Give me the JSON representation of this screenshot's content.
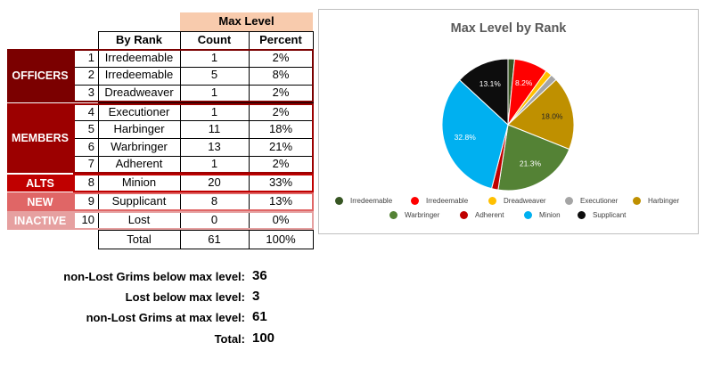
{
  "table": {
    "max_level_header": "Max Level",
    "col_headers": {
      "by_rank": "By Rank",
      "count": "Count",
      "percent": "Percent"
    },
    "groups": [
      {
        "label": "OFFICERS",
        "color": "#7b0000"
      },
      {
        "label": "MEMBERS",
        "color": "#9c0000"
      },
      {
        "label": "ALTS",
        "color": "#c00000"
      },
      {
        "label": "NEW",
        "color": "#e06666"
      },
      {
        "label": "INACTIVE",
        "color": "#e6a0a0"
      }
    ],
    "rows": [
      {
        "num": "1",
        "rank": "Irredeemable",
        "count": "1",
        "percent": "2%"
      },
      {
        "num": "2",
        "rank": "Irredeemable",
        "count": "5",
        "percent": "8%"
      },
      {
        "num": "3",
        "rank": "Dreadweaver",
        "count": "1",
        "percent": "2%"
      },
      {
        "num": "4",
        "rank": "Executioner",
        "count": "1",
        "percent": "2%"
      },
      {
        "num": "5",
        "rank": "Harbinger",
        "count": "11",
        "percent": "18%"
      },
      {
        "num": "6",
        "rank": "Warbringer",
        "count": "13",
        "percent": "21%"
      },
      {
        "num": "7",
        "rank": "Adherent",
        "count": "1",
        "percent": "2%"
      },
      {
        "num": "8",
        "rank": "Minion",
        "count": "20",
        "percent": "33%"
      },
      {
        "num": "9",
        "rank": "Supplicant",
        "count": "8",
        "percent": "13%"
      },
      {
        "num": "10",
        "rank": "Lost",
        "count": "0",
        "percent": "0%"
      }
    ],
    "total": {
      "label": "Total",
      "count": "61",
      "percent": "100%"
    }
  },
  "summary": [
    {
      "label": "non-Lost Grims below max level:",
      "value": "36"
    },
    {
      "label": "Lost below max level:",
      "value": "3"
    },
    {
      "label": "non-Lost Grims at max level:",
      "value": "61"
    },
    {
      "label": "Total:",
      "value": "100"
    }
  ],
  "chart_data": {
    "type": "pie",
    "title": "Max Level by Rank",
    "legend_position": "bottom",
    "slices": [
      {
        "label": "Irredeemable",
        "value": 1.6,
        "color": "#375623",
        "data_label": ""
      },
      {
        "label": "Irredeemable",
        "value": 8.2,
        "color": "#ff0000",
        "data_label": "8.2%"
      },
      {
        "label": "Dreadweaver",
        "value": 1.6,
        "color": "#ffc000",
        "data_label": ""
      },
      {
        "label": "Executioner",
        "value": 1.6,
        "color": "#a5a5a5",
        "data_label": ""
      },
      {
        "label": "Harbinger",
        "value": 18.0,
        "color": "#bf9000",
        "data_label": "18.0%"
      },
      {
        "label": "Warbringer",
        "value": 21.3,
        "color": "#548235",
        "data_label": "21.3%"
      },
      {
        "label": "Adherent",
        "value": 1.6,
        "color": "#c00000",
        "data_label": ""
      },
      {
        "label": "Minion",
        "value": 32.8,
        "color": "#00b0f0",
        "data_label": "32.8%"
      },
      {
        "label": "Supplicant",
        "value": 13.1,
        "color": "#0d0d0d",
        "data_label": "13.1%"
      }
    ]
  }
}
